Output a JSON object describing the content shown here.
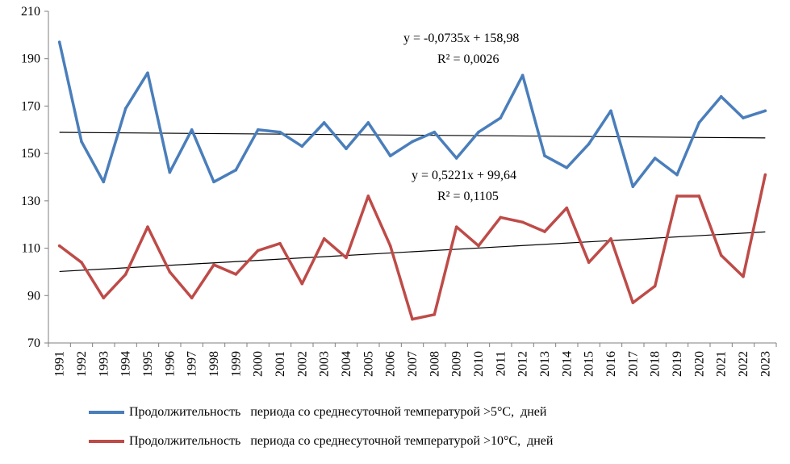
{
  "chart_data": {
    "type": "line",
    "categories": [
      "1991",
      "1992",
      "1993",
      "1994",
      "1995",
      "1996",
      "1997",
      "1998",
      "1999",
      "2000",
      "2001",
      "2002",
      "2003",
      "2004",
      "2005",
      "2006",
      "2007",
      "2008",
      "2009",
      "2010",
      "2011",
      "2012",
      "2013",
      "2014",
      "2015",
      "2016",
      "2017",
      "2018",
      "2019",
      "2020",
      "2021",
      "2022",
      "2023"
    ],
    "ylim": [
      70,
      210
    ],
    "yticks": [
      70,
      90,
      110,
      130,
      150,
      170,
      190,
      210
    ],
    "grid": false,
    "legend_position": "bottom",
    "series": [
      {
        "name": "Продолжительность   периода со среднесуточной температурой >5°С,  дней",
        "color": "#4a7ebb",
        "values": [
          197,
          155,
          138,
          169,
          184,
          142,
          160,
          138,
          143,
          160,
          159,
          153,
          163,
          152,
          163,
          149,
          155,
          159,
          148,
          159,
          165,
          183,
          149,
          144,
          154,
          168,
          136,
          148,
          141,
          163,
          174,
          165,
          168
        ],
        "trend": {
          "slope": -0.0735,
          "intercept": 158.98
        },
        "annotation": {
          "equation": "y = -0,0735x  + 158,98",
          "r2": "R² = 0,0026"
        }
      },
      {
        "name": "Продолжительность   периода со среднесуточной температурой >10°С,  дней",
        "color": "#be4b48",
        "values": [
          111,
          104,
          89,
          99,
          119,
          100,
          89,
          103,
          99,
          109,
          112,
          95,
          114,
          106,
          132,
          111,
          80,
          82,
          119,
          111,
          123,
          121,
          117,
          127,
          104,
          114,
          87,
          94,
          132,
          132,
          107,
          98,
          141
        ],
        "trend": {
          "slope": 0.5221,
          "intercept": 99.64
        },
        "annotation": {
          "equation": "y = 0,5221x   + 99,64",
          "r2": "R² = 0,1105"
        }
      }
    ],
    "trend_color": "#000000"
  }
}
